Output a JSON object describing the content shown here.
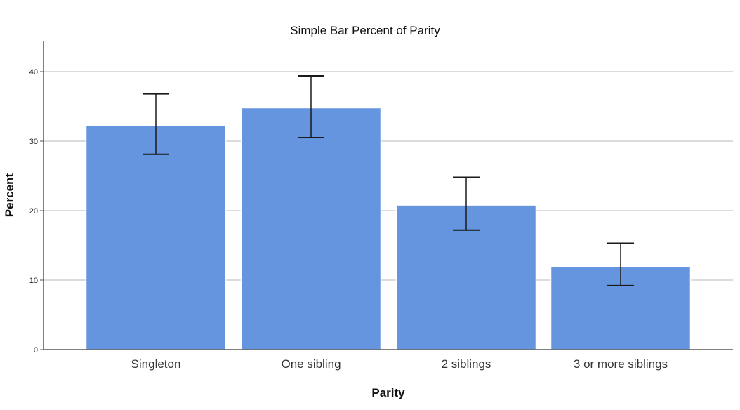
{
  "chart_data": {
    "type": "bar",
    "title": "Simple Bar Percent of Parity",
    "xlabel": "Parity",
    "ylabel": "Percent",
    "categories": [
      "Singleton",
      "One sibling",
      "2 siblings",
      "3 or more siblings"
    ],
    "values": [
      32.3,
      34.8,
      20.8,
      11.9
    ],
    "error_bars": {
      "lower": [
        28.1,
        30.5,
        17.2,
        9.2
      ],
      "upper": [
        36.8,
        39.4,
        24.8,
        15.3
      ]
    },
    "ylim": [
      0,
      44
    ],
    "yticks": [
      0,
      10,
      20,
      30,
      40
    ],
    "grid": true,
    "bar_color": "#6495de",
    "bar_edge_color": "#ffffff",
    "error_bar_color": "#1a1a1a",
    "grid_color": "#d0d0d0",
    "axis_color": "#555555"
  }
}
